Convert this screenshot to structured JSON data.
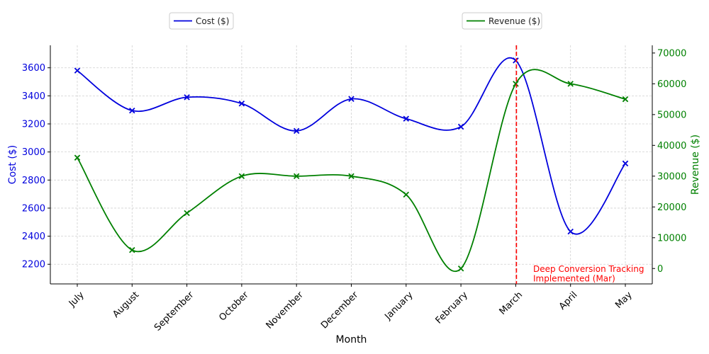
{
  "chart_data": {
    "type": "line",
    "categories": [
      "July",
      "August",
      "September",
      "October",
      "November",
      "December",
      "January",
      "February",
      "March",
      "April",
      "May"
    ],
    "series": [
      {
        "name": "Cost ($)",
        "axis": "left",
        "color": "#0000dd",
        "marker": "x",
        "values": [
          3580,
          3295,
          3390,
          3345,
          3150,
          3378,
          3237,
          3180,
          3652,
          2433,
          2918
        ]
      },
      {
        "name": "Revenue ($)",
        "axis": "right",
        "color": "#008000",
        "marker": "x",
        "values": [
          36000,
          6000,
          18000,
          30000,
          30000,
          30000,
          24000,
          0,
          60000,
          60000,
          55000
        ]
      }
    ],
    "xlabel": "Month",
    "ylabel_left": "Cost ($)",
    "ylabel_right": "Revenue ($)",
    "ylim_left": [
      2060,
      3760
    ],
    "yticks_left": [
      2200,
      2400,
      2600,
      2800,
      3000,
      3200,
      3400,
      3600
    ],
    "ylim_right": [
      -5000,
      72500
    ],
    "yticks_right": [
      0,
      10000,
      20000,
      30000,
      40000,
      50000,
      60000,
      70000
    ],
    "left_axis_color": "#0000dd",
    "right_axis_color": "#008000",
    "grid": true,
    "smooth": true,
    "legend": [
      {
        "label": "Cost ($)",
        "color": "#0000dd",
        "placement": "top-left"
      },
      {
        "label": "Revenue ($)",
        "color": "#008000",
        "placement": "top-right"
      }
    ],
    "annotation": {
      "at_category": "March",
      "color": "#ff0000",
      "line_style": "dashed",
      "lines": [
        "Deep Conversion Tracking",
        "Implemented (Mar)"
      ]
    }
  }
}
